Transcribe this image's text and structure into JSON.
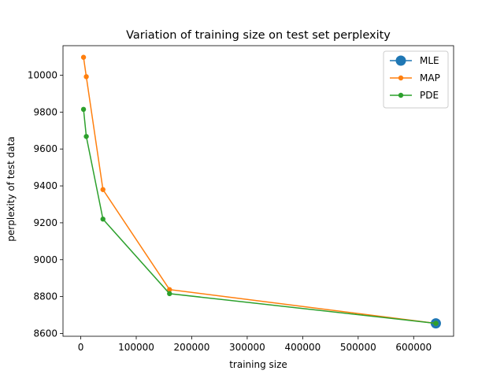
{
  "chart_data": {
    "type": "line",
    "title": "Variation of training size on test set perplexity",
    "xlabel": "training size",
    "ylabel": "perplexity of test data",
    "xlim": [
      -32000,
      672000
    ],
    "ylim": [
      8585,
      10160
    ],
    "xticks": [
      0,
      100000,
      200000,
      300000,
      400000,
      500000,
      600000
    ],
    "yticks": [
      8600,
      8800,
      9000,
      9200,
      9400,
      9600,
      9800,
      10000
    ],
    "grid": false,
    "legend": "top-right",
    "series": [
      {
        "name": "MLE",
        "color": "#1f77b4",
        "marker": "large-circle",
        "x": [
          640000
        ],
        "y": [
          8655
        ]
      },
      {
        "name": "MAP",
        "color": "#ff7f0e",
        "marker": "circle",
        "x": [
          5000,
          10000,
          40000,
          160000,
          640000
        ],
        "y": [
          10097,
          9992,
          9380,
          8838,
          8655
        ]
      },
      {
        "name": "PDE",
        "color": "#2ca02c",
        "marker": "circle",
        "x": [
          5000,
          10000,
          40000,
          160000,
          640000
        ],
        "y": [
          9815,
          9668,
          9220,
          8816,
          8655
        ]
      }
    ]
  }
}
